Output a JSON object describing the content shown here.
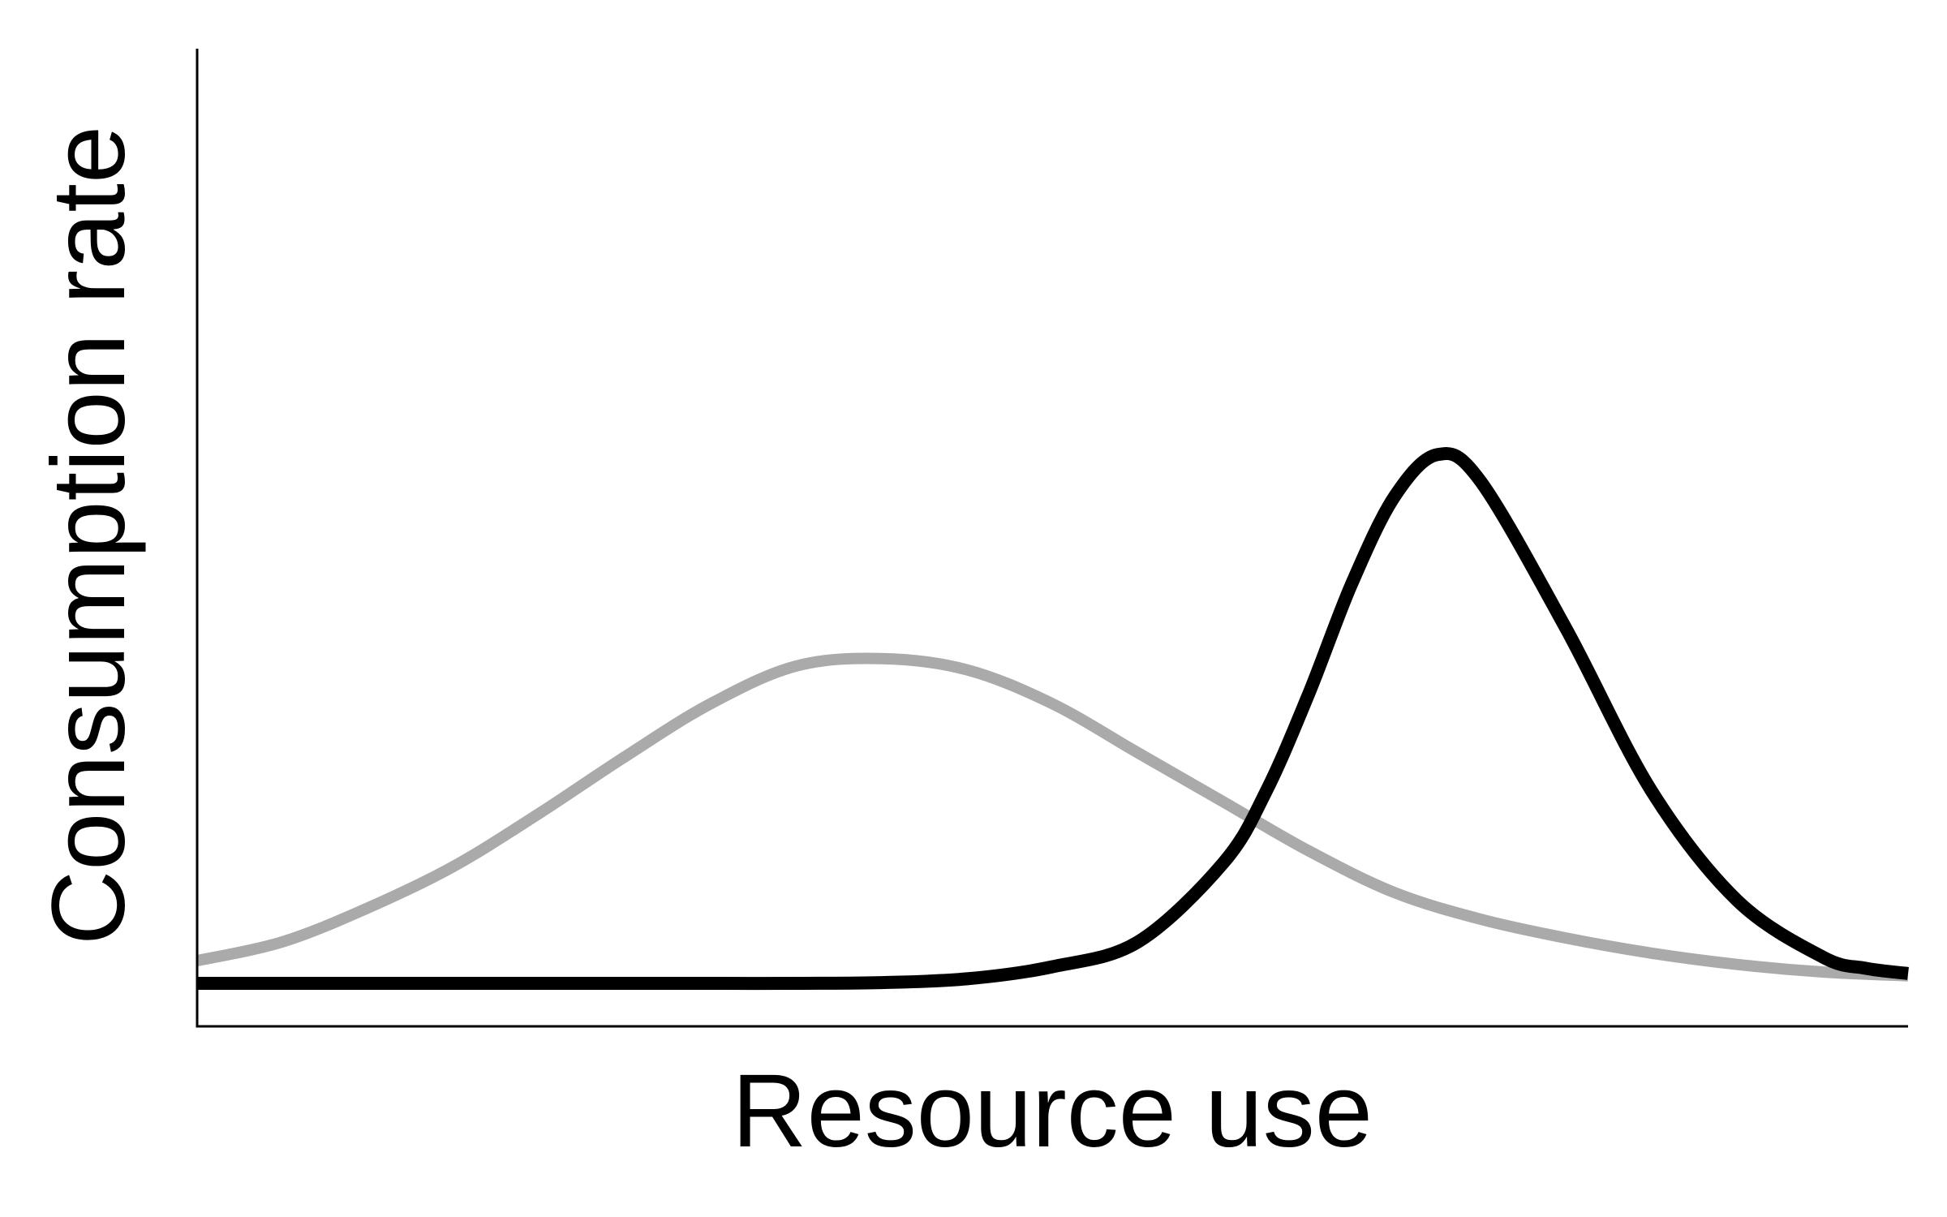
{
  "chart_data": {
    "type": "line",
    "title": "",
    "xlabel": "Resource use",
    "ylabel": "Consumption rate",
    "xlim": [
      0,
      1
    ],
    "ylim": [
      0,
      1
    ],
    "grid": false,
    "legend": "none",
    "x_ticks": false,
    "y_ticks": false,
    "series": [
      {
        "color": "#aaaaaa",
        "x": [
          0,
          0.05,
          0.1,
          0.15,
          0.2,
          0.25,
          0.3,
          0.35,
          0.4,
          0.45,
          0.5,
          0.55,
          0.6,
          0.65,
          0.7,
          0.75,
          0.8,
          0.85,
          0.9,
          0.95,
          1
        ],
        "y": [
          0.03,
          0.055,
          0.1,
          0.155,
          0.225,
          0.3,
          0.37,
          0.42,
          0.43,
          0.415,
          0.37,
          0.305,
          0.24,
          0.175,
          0.12,
          0.085,
          0.06,
          0.04,
          0.025,
          0.015,
          0.01
        ]
      },
      {
        "color": "#000000",
        "x": [
          0,
          0.05,
          0.1,
          0.15,
          0.2,
          0.25,
          0.3,
          0.35,
          0.4,
          0.45,
          0.5,
          0.55,
          0.6,
          0.625,
          0.65,
          0.675,
          0.7,
          0.725,
          0.75,
          0.8,
          0.85,
          0.9,
          0.95,
          0.975,
          1
        ],
        "y": [
          0,
          0,
          0,
          0,
          0,
          0,
          0,
          0,
          0.001,
          0.006,
          0.022,
          0.055,
          0.16,
          0.255,
          0.385,
          0.53,
          0.645,
          0.7,
          0.665,
          0.47,
          0.255,
          0.11,
          0.035,
          0.02,
          0.013
        ]
      }
    ]
  }
}
